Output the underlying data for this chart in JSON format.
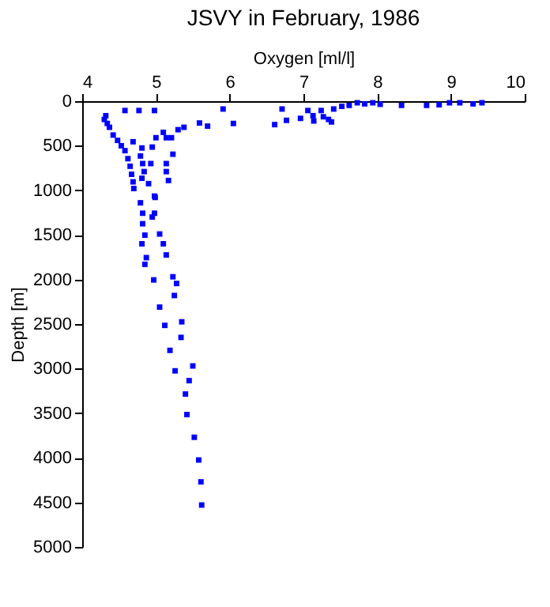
{
  "chart_data": {
    "type": "scatter",
    "title": "JSVY in February, 1986",
    "xlabel": "Oxygen [ml/l]",
    "ylabel": "Depth [m]",
    "x": [
      4.58,
      4.77,
      4.98,
      4.32,
      4.3,
      4.34,
      4.37,
      4.42,
      4.48,
      4.53,
      4.58,
      4.62,
      4.65,
      4.67,
      4.69,
      4.7,
      4.69,
      4.81,
      4.79,
      4.82,
      4.84,
      4.81,
      4.9,
      4.93,
      4.95,
      5.0,
      4.98,
      4.79,
      5.1,
      5.14,
      5.21,
      5.23,
      5.14,
      5.14,
      5.17,
      5.3,
      5.38,
      5.59,
      5.7,
      5.91,
      6.05,
      6.61,
      6.71,
      6.77,
      6.96,
      7.06,
      7.13,
      7.14,
      7.24,
      7.27,
      7.34,
      7.38,
      7.41,
      7.52,
      7.62,
      7.73,
      7.83,
      7.94,
      8.04,
      8.33,
      8.67,
      8.84,
      8.98,
      9.12,
      9.3,
      9.42,
      4.99,
      4.82,
      4.98,
      4.95,
      4.82,
      4.85,
      5.05,
      4.81,
      5.1,
      4.87,
      4.85,
      5.14,
      5.23,
      5.28,
      4.97,
      5.25,
      5.05,
      5.35,
      5.12,
      5.34,
      5.19,
      5.5,
      5.26,
      5.45,
      5.4,
      5.42,
      5.52,
      5.58,
      5.61,
      5.62
    ],
    "series": [
      {
        "color": "#0000ff",
        "values": [
          105,
          105,
          105,
          163,
          205,
          250,
          293,
          380,
          440,
          500,
          555,
          645,
          730,
          820,
          905,
          980,
          455,
          525,
          615,
          700,
          790,
          865,
          925,
          700,
          515,
          410,
          1065,
          1140,
          350,
          410,
          410,
          595,
          700,
          790,
          890,
          320,
          293,
          245,
          280,
          88,
          250,
          263,
          88,
          215,
          193,
          105,
          163,
          222,
          105,
          175,
          205,
          233,
          88,
          58,
          47,
          18,
          30,
          18,
          35,
          47,
          47,
          40,
          18,
          18,
          30,
          18,
          1080,
          1257,
          1257,
          1300,
          1375,
          1503,
          1490,
          1600,
          1600,
          1755,
          1830,
          1725,
          1970,
          2045,
          2005,
          2180,
          2310,
          2475,
          2515,
          2650,
          2795,
          2970,
          3025,
          3135,
          3285,
          3515,
          3770,
          4025,
          4270,
          4530
        ]
      }
    ],
    "xlim": [
      4,
      10
    ],
    "xticks": [
      4,
      5,
      6,
      7,
      8,
      9,
      10
    ],
    "ylim": [
      5000,
      0
    ],
    "yticks": [
      0,
      500,
      1000,
      1500,
      2000,
      2500,
      3000,
      3500,
      4000,
      4500,
      5000
    ],
    "marker": "square",
    "grid": false
  }
}
